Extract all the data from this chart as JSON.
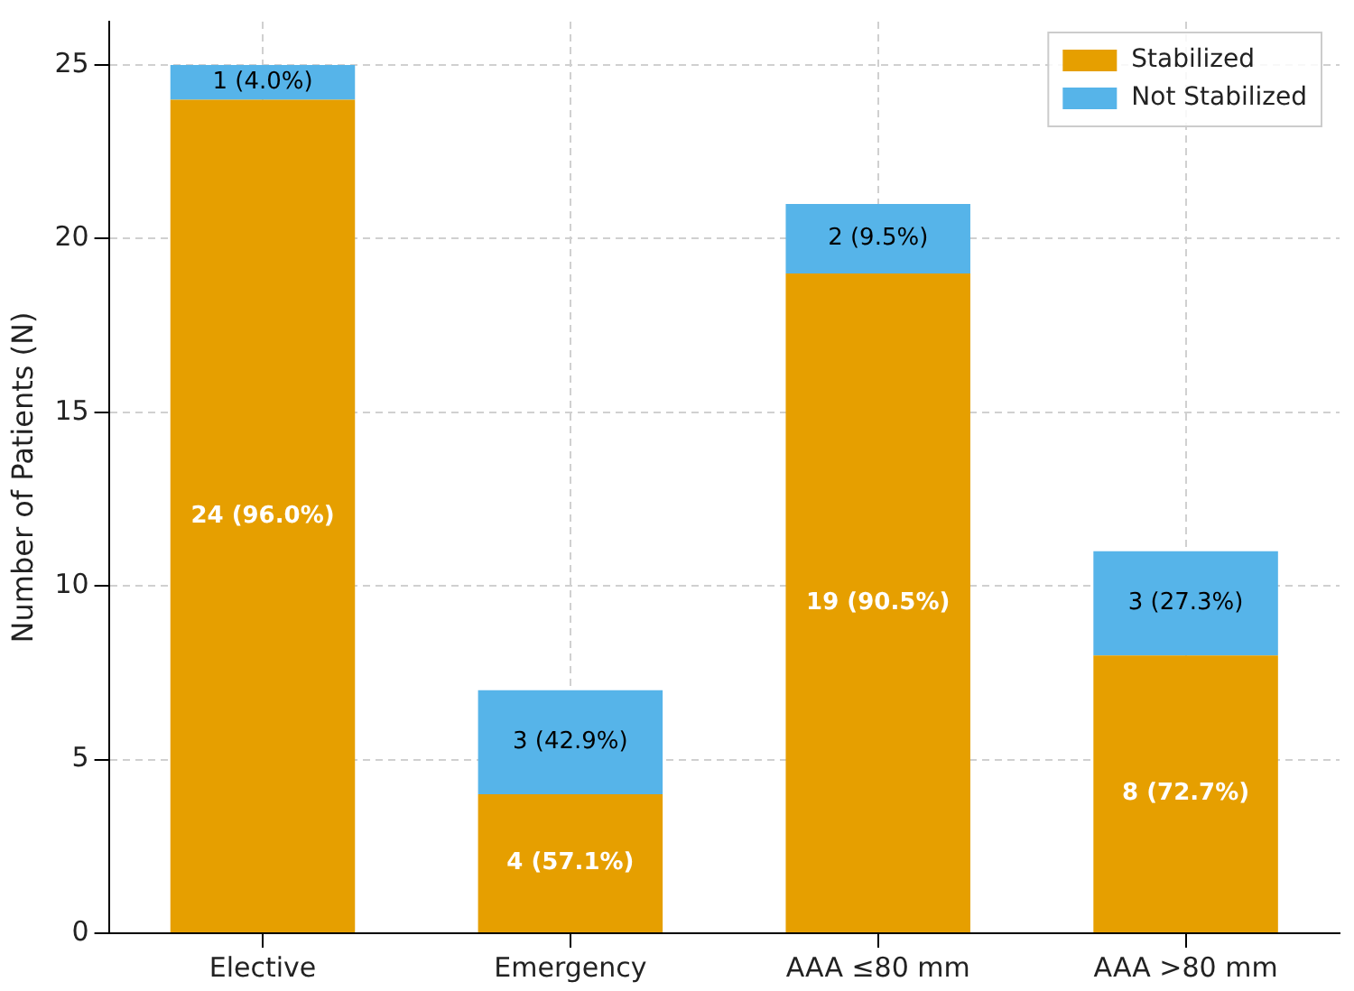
{
  "chart_data": {
    "type": "bar",
    "ylabel": "Number of Patients (N)",
    "categories": [
      "Elective",
      "Emergency",
      "AAA ≤80 mm",
      "AAA >80 mm"
    ],
    "stacked": true,
    "series": [
      {
        "name": "Stabilized",
        "color": "#e69f00",
        "values": [
          24,
          4,
          19,
          8
        ],
        "value_labels": [
          "24 (96.0%)",
          "4 (57.1%)",
          "19 (90.5%)",
          "8 (72.7%)"
        ]
      },
      {
        "name": "Not Stabilized",
        "color": "#56b4e9",
        "values": [
          1,
          3,
          2,
          3
        ],
        "value_labels": [
          "1 (4.0%)",
          "3 (42.9%)",
          "2 (9.5%)",
          "3 (27.3%)"
        ]
      }
    ],
    "ylim": [
      0,
      26.25
    ],
    "yticks": [
      0,
      5,
      10,
      15,
      20,
      25
    ],
    "grid": true,
    "legend": "top right"
  }
}
